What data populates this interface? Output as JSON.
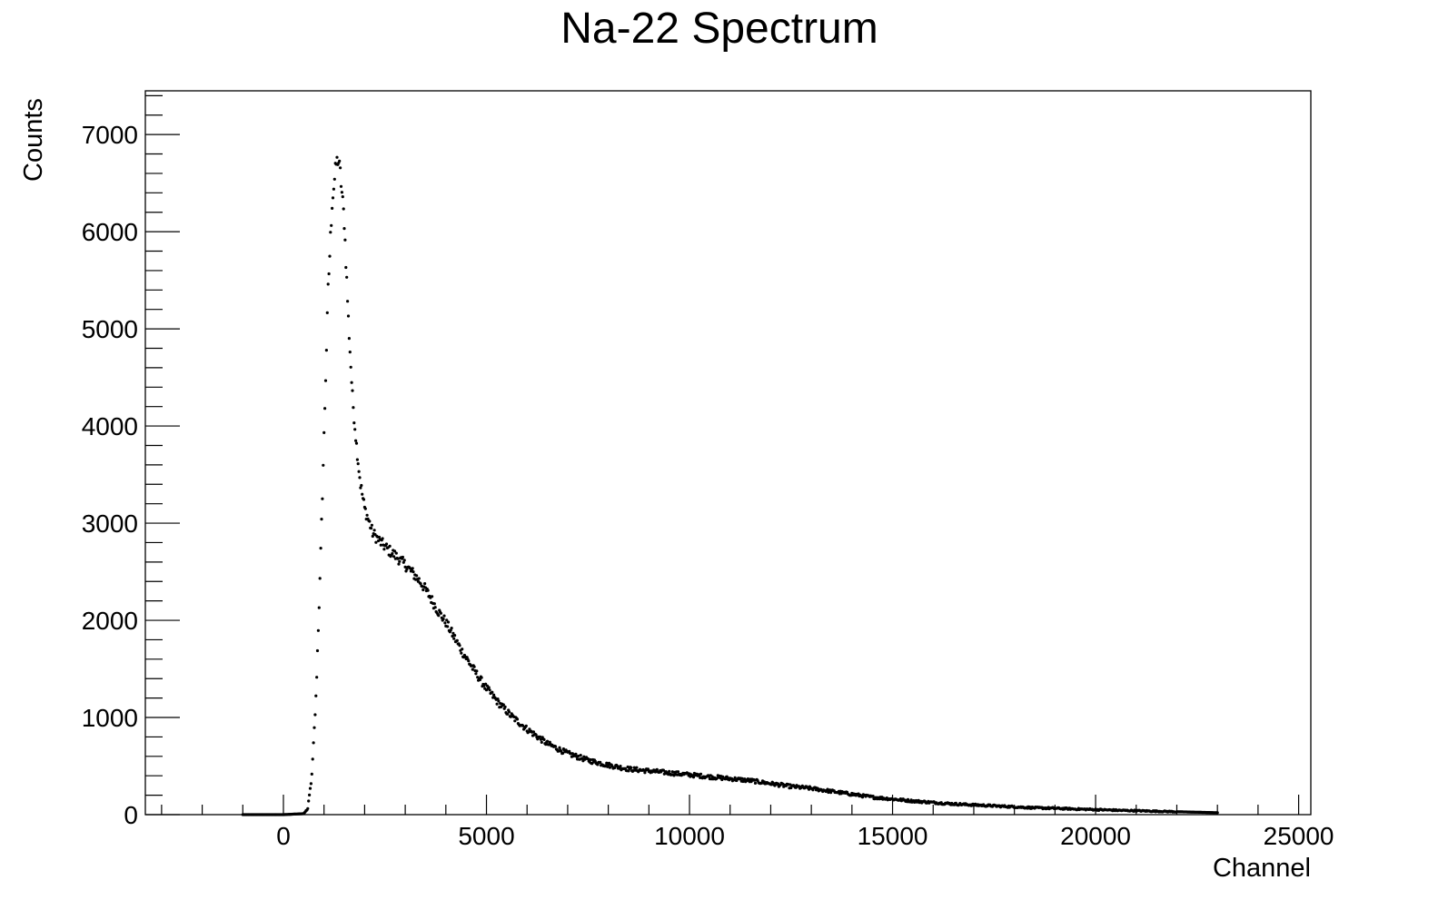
{
  "chart_data": {
    "type": "scatter",
    "title": "Na-22 Spectrum",
    "xlabel": "Channel",
    "ylabel": "Counts",
    "xlim": [
      -3400,
      25300
    ],
    "ylim": [
      0,
      7450
    ],
    "x_range": [
      -1000,
      23000
    ],
    "xticks": [
      0,
      5000,
      10000,
      15000,
      20000,
      25000
    ],
    "yticks": [
      0,
      1000,
      2000,
      3000,
      4000,
      5000,
      6000,
      7000
    ],
    "xtick_labels": [
      "0",
      "5000",
      "10000",
      "15000",
      "20000",
      "25000"
    ],
    "ytick_labels": [
      "0",
      "1000",
      "2000",
      "3000",
      "4000",
      "5000",
      "6000",
      "7000"
    ],
    "grid": false,
    "legend": "none",
    "marker_color": "#000000",
    "series": [
      {
        "x": [
          -1000,
          0,
          500,
          600,
          700,
          800,
          900,
          1000,
          1100,
          1200,
          1300,
          1350,
          1400,
          1500,
          1600,
          1700,
          1800,
          1900,
          2000,
          2200,
          2400,
          2600,
          2800,
          3000,
          3200,
          3400,
          3600,
          3800,
          4000,
          4200,
          4400,
          4600,
          4800,
          5000,
          5300,
          5600,
          6000,
          6500,
          7000,
          7500,
          8000,
          8500,
          9000,
          9500,
          10000,
          10500,
          11000,
          11500,
          12000,
          12500,
          13000,
          13500,
          14000,
          14500,
          15000,
          15500,
          16000,
          16500,
          17000,
          17500,
          18000,
          18500,
          19000,
          19500,
          20000,
          20500,
          21000,
          21500,
          22000,
          22500,
          23000
        ],
        "y": [
          0,
          0,
          10,
          60,
          400,
          1200,
          2400,
          3900,
          5400,
          6300,
          6700,
          6750,
          6600,
          6100,
          5100,
          4300,
          3800,
          3400,
          3150,
          2900,
          2800,
          2720,
          2650,
          2570,
          2480,
          2380,
          2250,
          2100,
          1980,
          1830,
          1680,
          1550,
          1420,
          1300,
          1150,
          1020,
          880,
          730,
          630,
          560,
          510,
          470,
          450,
          430,
          410,
          390,
          370,
          350,
          320,
          290,
          270,
          240,
          210,
          180,
          160,
          140,
          125,
          110,
          100,
          90,
          80,
          70,
          65,
          58,
          52,
          45,
          40,
          35,
          30,
          25,
          20
        ]
      }
    ]
  }
}
